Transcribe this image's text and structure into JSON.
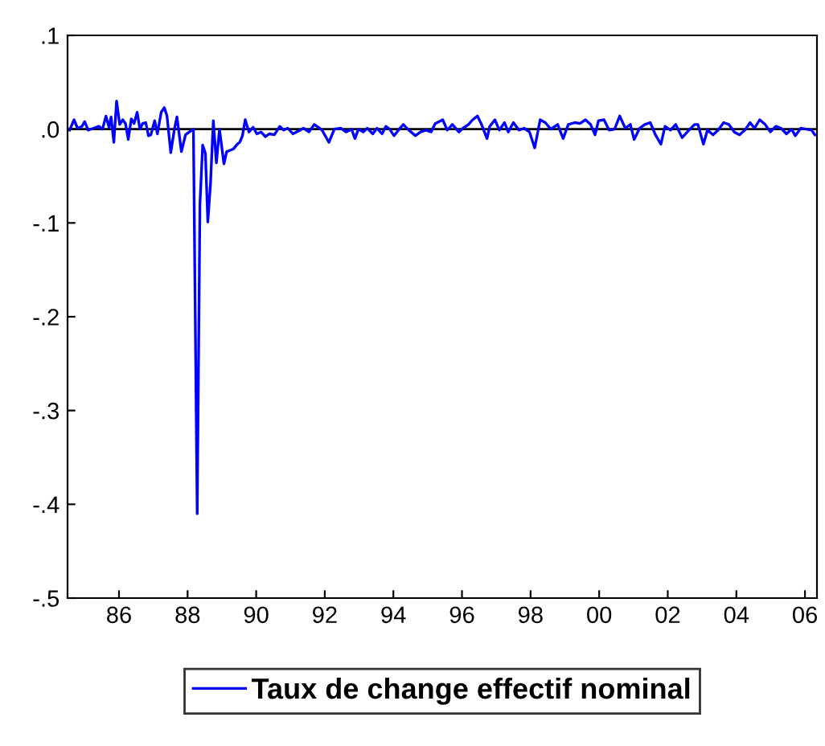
{
  "chart_data": {
    "type": "line",
    "xlim": [
      1984.5,
      2006.35
    ],
    "ylim": [
      -0.5,
      0.1
    ],
    "xticks": [
      {
        "value": 1986,
        "label": "86"
      },
      {
        "value": 1988,
        "label": "88"
      },
      {
        "value": 1990,
        "label": "90"
      },
      {
        "value": 1992,
        "label": "92"
      },
      {
        "value": 1994,
        "label": "94"
      },
      {
        "value": 1996,
        "label": "96"
      },
      {
        "value": 1998,
        "label": "98"
      },
      {
        "value": 2000,
        "label": "00"
      },
      {
        "value": 2002,
        "label": "02"
      },
      {
        "value": 2004,
        "label": "04"
      },
      {
        "value": 2006,
        "label": "06"
      }
    ],
    "yticks": [
      {
        "value": 0.1,
        "label": ".1"
      },
      {
        "value": 0,
        "label": ".0"
      },
      {
        "value": -0.1,
        "label": "-.1"
      },
      {
        "value": -0.2,
        "label": "-.2"
      },
      {
        "value": -0.3,
        "label": "-.3"
      },
      {
        "value": -0.4,
        "label": "-.4"
      },
      {
        "value": -0.5,
        "label": "-.5"
      }
    ],
    "grid": false,
    "legend": "bottom",
    "marker": "none",
    "line_style": "solid",
    "ref_lines": [
      {
        "axis": "y",
        "value": 0,
        "color": "#000000"
      }
    ],
    "series": [
      {
        "name": "Taux de change effectif nominal",
        "color": "#0000ff",
        "x": [
          1984.56,
          1984.69,
          1984.79,
          1984.92,
          1985.0,
          1985.1,
          1985.26,
          1985.41,
          1985.52,
          1985.62,
          1985.71,
          1985.77,
          1985.85,
          1985.93,
          1986.02,
          1986.11,
          1986.19,
          1986.27,
          1986.36,
          1986.44,
          1986.53,
          1986.61,
          1986.69,
          1986.78,
          1986.86,
          1986.93,
          1987.04,
          1987.12,
          1987.23,
          1987.32,
          1987.4,
          1987.51,
          1987.62,
          1987.69,
          1987.82,
          1987.94,
          1988.05,
          1988.17,
          1988.28,
          1988.36,
          1988.44,
          1988.52,
          1988.59,
          1988.67,
          1988.75,
          1988.84,
          1988.93,
          1989.06,
          1989.14,
          1989.21,
          1989.34,
          1989.45,
          1989.52,
          1989.6,
          1989.68,
          1989.79,
          1989.91,
          1990.02,
          1990.14,
          1990.27,
          1990.38,
          1990.53,
          1990.69,
          1990.8,
          1990.92,
          1991.07,
          1991.23,
          1991.38,
          1991.54,
          1991.69,
          1991.85,
          1991.92,
          1992.12,
          1992.28,
          1992.47,
          1992.62,
          1992.78,
          1992.88,
          1992.98,
          1993.12,
          1993.24,
          1993.4,
          1993.52,
          1993.67,
          1993.78,
          1993.89,
          1994.02,
          1994.17,
          1994.29,
          1994.45,
          1994.64,
          1994.79,
          1994.95,
          1995.1,
          1995.22,
          1995.44,
          1995.57,
          1995.72,
          1995.91,
          1996.03,
          1996.19,
          1996.31,
          1996.45,
          1996.57,
          1996.73,
          1996.81,
          1996.96,
          1997.09,
          1997.24,
          1997.35,
          1997.5,
          1997.66,
          1997.81,
          1997.97,
          1998.12,
          1998.28,
          1998.43,
          1998.59,
          1998.79,
          1998.95,
          1999.1,
          1999.29,
          1999.44,
          1999.6,
          1999.75,
          1999.88,
          1999.98,
          2000.14,
          2000.29,
          2000.45,
          2000.6,
          2000.76,
          2000.91,
          2001.02,
          2001.18,
          2001.33,
          2001.49,
          2001.64,
          2001.8,
          2001.92,
          2002.08,
          2002.23,
          2002.42,
          2002.57,
          2002.78,
          2002.88,
          2003.04,
          2003.16,
          2003.32,
          2003.47,
          2003.63,
          2003.78,
          2003.94,
          2004.09,
          2004.25,
          2004.4,
          2004.53,
          2004.68,
          2004.84,
          2004.99,
          2005.15,
          2005.3,
          2005.46,
          2005.61,
          2005.72,
          2005.88,
          2006.03,
          2006.19,
          2006.29
        ],
        "values": [
          -0.001,
          0.01,
          0.001,
          0.003,
          0.008,
          -0.001,
          0.001,
          0.003,
          0,
          0.014,
          0.002,
          0.013,
          -0.014,
          0.03,
          0.005,
          0.01,
          0.006,
          -0.011,
          0.011,
          0.006,
          0.018,
          0,
          0.006,
          0.007,
          -0.007,
          -0.006,
          0.009,
          -0.005,
          0.018,
          0.023,
          0.014,
          -0.025,
          0.001,
          0.013,
          -0.024,
          -0.006,
          -0.003,
          0,
          -0.41,
          -0.08,
          -0.017,
          -0.026,
          -0.099,
          -0.057,
          0.009,
          -0.036,
          0,
          -0.037,
          -0.024,
          -0.023,
          -0.021,
          -0.016,
          -0.014,
          -0.007,
          0.01,
          -0.003,
          0.002,
          -0.005,
          -0.003,
          -0.008,
          -0.005,
          -0.006,
          0.003,
          -0.001,
          0.001,
          -0.005,
          -0.002,
          0.001,
          -0.003,
          0.005,
          0.001,
          -0.001,
          -0.014,
          0,
          0.001,
          -0.003,
          0,
          -0.01,
          0,
          -0.003,
          0.001,
          -0.005,
          0.001,
          -0.005,
          0.003,
          0,
          -0.007,
          0,
          0.005,
          -0.001,
          -0.007,
          -0.003,
          -0.001,
          -0.003,
          0.006,
          0.01,
          -0.001,
          0.005,
          -0.003,
          0.001,
          0.005,
          0.01,
          0.014,
          0.005,
          -0.01,
          0.003,
          0.01,
          -0.001,
          0.007,
          -0.003,
          0.007,
          -0.001,
          0.001,
          -0.003,
          -0.02,
          0.01,
          0.007,
          0,
          0.005,
          -0.01,
          0.005,
          0.007,
          0.006,
          0.01,
          0.005,
          -0.006,
          0.009,
          0.01,
          -0.001,
          0,
          0.014,
          0.001,
          0.005,
          -0.011,
          0.001,
          0.005,
          0.007,
          -0.006,
          -0.016,
          0.003,
          -0.001,
          0.005,
          -0.009,
          -0.003,
          0.005,
          0.005,
          -0.016,
          -0.001,
          -0.006,
          -0.001,
          0.007,
          0.005,
          -0.003,
          -0.006,
          -0.001,
          0.007,
          0.001,
          0.01,
          0.005,
          -0.003,
          0.003,
          0.001,
          -0.005,
          0,
          -0.007,
          0.001,
          0,
          -0.001,
          -0.006
        ]
      }
    ]
  }
}
